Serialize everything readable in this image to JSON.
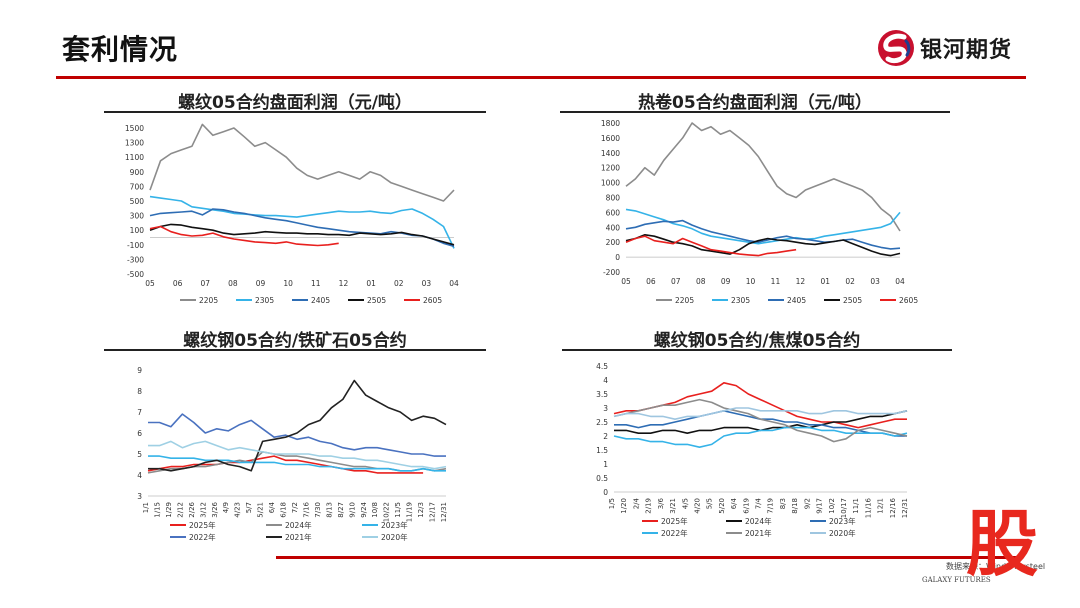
{
  "header": {
    "title": "套利情况",
    "logo_text": "银河期货"
  },
  "footer": {
    "source": "数据来源：Wind、Mysteel",
    "brand": "GALAXY FUTURES",
    "overlay_char": "股"
  },
  "colors": {
    "accent": "#c00000",
    "overlay": "#e8281e"
  },
  "chart_data": [
    {
      "type": "line",
      "title": "螺纹05合约盘面利润（元/吨）",
      "xlabel": "",
      "ylabel": "",
      "x_ticks": [
        "05",
        "06",
        "07",
        "08",
        "09",
        "10",
        "11",
        "12",
        "01",
        "02",
        "03",
        "04"
      ],
      "y_ticks": [
        "1500",
        "1300",
        "1100",
        "900",
        "700",
        "500",
        "300",
        "100",
        "-100",
        "-300",
        "-500"
      ],
      "ylim": [
        -500,
        1500
      ],
      "legend": "bottom",
      "series": [
        {
          "name": "2205",
          "color": "#8c8c8c",
          "values": [
            650,
            1050,
            1150,
            1200,
            1250,
            1550,
            1400,
            1450,
            1500,
            1380,
            1250,
            1300,
            1200,
            1100,
            950,
            850,
            800,
            850,
            900,
            850,
            800,
            900,
            850,
            750,
            700,
            650,
            600,
            550,
            500,
            650
          ]
        },
        {
          "name": "2305",
          "color": "#35b3e8",
          "values": [
            560,
            540,
            520,
            500,
            420,
            400,
            380,
            360,
            330,
            320,
            310,
            300,
            300,
            290,
            280,
            300,
            320,
            340,
            360,
            350,
            350,
            360,
            340,
            330,
            370,
            390,
            330,
            250,
            150,
            -150
          ]
        },
        {
          "name": "2405",
          "color": "#2e6db4",
          "values": [
            300,
            330,
            340,
            350,
            360,
            310,
            390,
            380,
            350,
            330,
            300,
            270,
            250,
            230,
            200,
            170,
            140,
            120,
            100,
            80,
            70,
            60,
            50,
            80,
            60,
            30,
            20,
            -20,
            -80,
            -120
          ]
        },
        {
          "name": "2505",
          "color": "#111111",
          "values": [
            100,
            150,
            180,
            170,
            140,
            120,
            100,
            60,
            40,
            50,
            60,
            80,
            70,
            60,
            60,
            50,
            50,
            40,
            40,
            30,
            60,
            50,
            40,
            50,
            70,
            40,
            20,
            -20,
            -60,
            -100
          ]
        },
        {
          "name": "2605",
          "color": "#e8201e",
          "values": [
            120,
            150,
            80,
            40,
            20,
            30,
            60,
            10,
            -20,
            -40,
            -60,
            -70,
            -80,
            -60,
            -90,
            -100,
            -110,
            -100,
            -80
          ]
        }
      ]
    },
    {
      "type": "line",
      "title": "热卷05合约盘面利润（元/吨）",
      "xlabel": "",
      "ylabel": "",
      "x_ticks": [
        "05",
        "06",
        "07",
        "08",
        "09",
        "10",
        "11",
        "12",
        "01",
        "02",
        "03",
        "04"
      ],
      "y_ticks": [
        "1800",
        "1600",
        "1400",
        "1200",
        "1000",
        "800",
        "600",
        "400",
        "200",
        "0",
        "-200"
      ],
      "ylim": [
        -200,
        1800
      ],
      "legend": "bottom",
      "series": [
        {
          "name": "2205",
          "color": "#8c8c8c",
          "values": [
            950,
            1050,
            1200,
            1100,
            1300,
            1450,
            1600,
            1800,
            1700,
            1750,
            1650,
            1700,
            1600,
            1500,
            1350,
            1150,
            950,
            850,
            800,
            900,
            950,
            1000,
            1050,
            1000,
            950,
            900,
            800,
            650,
            550,
            350
          ]
        },
        {
          "name": "2305",
          "color": "#35b3e8",
          "values": [
            640,
            620,
            580,
            540,
            500,
            450,
            420,
            380,
            320,
            280,
            260,
            240,
            220,
            200,
            180,
            200,
            220,
            240,
            260,
            240,
            250,
            280,
            300,
            320,
            340,
            360,
            380,
            400,
            450,
            600
          ]
        },
        {
          "name": "2405",
          "color": "#2e6db4",
          "values": [
            380,
            400,
            440,
            460,
            480,
            470,
            490,
            430,
            380,
            340,
            310,
            280,
            250,
            220,
            200,
            230,
            260,
            280,
            250,
            240,
            220,
            200,
            210,
            230,
            240,
            200,
            160,
            130,
            110,
            120
          ]
        },
        {
          "name": "2505",
          "color": "#111111",
          "values": [
            220,
            250,
            300,
            280,
            240,
            200,
            180,
            150,
            100,
            80,
            60,
            40,
            100,
            180,
            220,
            250,
            230,
            220,
            200,
            180,
            170,
            190,
            210,
            230,
            180,
            130,
            80,
            40,
            20,
            50
          ]
        },
        {
          "name": "2605",
          "color": "#e8201e",
          "values": [
            200,
            250,
            280,
            220,
            200,
            180,
            250,
            200,
            150,
            100,
            80,
            60,
            40,
            30,
            20,
            50,
            60,
            80,
            100
          ]
        }
      ]
    },
    {
      "type": "line",
      "title": "螺纹钢05合约/铁矿石05合约",
      "xlabel": "",
      "ylabel": "",
      "x_ticks": [
        "1/1",
        "1/15",
        "1/29",
        "2/12",
        "2/26",
        "3/12",
        "3/26",
        "4/9",
        "4/23",
        "5/7",
        "5/21",
        "6/4",
        "6/18",
        "7/2",
        "7/16",
        "7/30",
        "8/13",
        "8/27",
        "9/10",
        "9/24",
        "10/8",
        "10/22",
        "11/5",
        "11/19",
        "12/3",
        "12/17",
        "12/31"
      ],
      "y_ticks": [
        "9",
        "8",
        "7",
        "6",
        "5",
        "4",
        "3"
      ],
      "ylim": [
        3,
        9
      ],
      "legend": "bottom",
      "series": [
        {
          "name": "2025年",
          "color": "#e8201e",
          "values": [
            4.2,
            4.3,
            4.4,
            4.4,
            4.5,
            4.5,
            4.5,
            4.6,
            4.6,
            4.7,
            4.8,
            4.9,
            4.7,
            4.7,
            4.6,
            4.5,
            4.4,
            4.3,
            4.2,
            4.2,
            4.1,
            4.1,
            4.1,
            4.1,
            4.1
          ]
        },
        {
          "name": "2024年",
          "color": "#8c8c8c",
          "values": [
            4.1,
            4.2,
            4.3,
            4.3,
            4.4,
            4.4,
            4.5,
            4.6,
            4.7,
            4.6,
            5.1,
            5.0,
            4.9,
            4.9,
            4.8,
            4.7,
            4.6,
            4.5,
            4.4,
            4.4,
            4.3,
            4.3,
            4.2,
            4.2,
            4.3,
            4.2,
            4.3
          ]
        },
        {
          "name": "2023年",
          "color": "#35b3e8",
          "values": [
            4.9,
            4.9,
            4.8,
            4.8,
            4.8,
            4.7,
            4.7,
            4.7,
            4.6,
            4.6,
            4.6,
            4.6,
            4.5,
            4.5,
            4.5,
            4.4,
            4.4,
            4.3,
            4.3,
            4.3,
            4.3,
            4.3,
            4.2,
            4.2,
            4.3,
            4.2,
            4.2
          ]
        },
        {
          "name": "2022年",
          "color": "#4a72c0",
          "values": [
            6.5,
            6.5,
            6.3,
            6.9,
            6.5,
            6.0,
            6.2,
            6.1,
            6.4,
            6.6,
            6.2,
            5.8,
            5.9,
            5.7,
            5.8,
            5.6,
            5.5,
            5.3,
            5.2,
            5.3,
            5.3,
            5.2,
            5.1,
            5.0,
            5.0,
            4.9,
            4.9
          ]
        },
        {
          "name": "2021年",
          "color": "#222222",
          "values": [
            4.3,
            4.3,
            4.2,
            4.3,
            4.4,
            4.6,
            4.7,
            4.5,
            4.4,
            4.2,
            5.6,
            5.7,
            5.8,
            6.0,
            6.4,
            6.6,
            7.2,
            7.6,
            8.5,
            7.8,
            7.5,
            7.2,
            7.0,
            6.6,
            6.8,
            6.7,
            6.4
          ]
        },
        {
          "name": "2020年",
          "color": "#9fd0e4",
          "values": [
            5.4,
            5.4,
            5.6,
            5.3,
            5.5,
            5.6,
            5.4,
            5.2,
            5.3,
            5.2,
            5.1,
            5.0,
            5.0,
            5.0,
            5.0,
            4.9,
            4.9,
            4.8,
            4.8,
            4.7,
            4.7,
            4.6,
            4.5,
            4.4,
            4.4,
            4.3,
            4.4
          ]
        }
      ]
    },
    {
      "type": "line",
      "title": "螺纹钢05合约/焦煤05合约",
      "xlabel": "",
      "ylabel": "",
      "x_ticks": [
        "1/5",
        "1/20",
        "2/4",
        "2/19",
        "3/6",
        "3/21",
        "4/5",
        "4/20",
        "5/5",
        "5/20",
        "6/4",
        "6/19",
        "7/4",
        "7/19",
        "8/3",
        "8/18",
        "9/2",
        "9/17",
        "10/2",
        "10/17",
        "11/1",
        "11/16",
        "12/1",
        "12/16",
        "12/31"
      ],
      "y_ticks": [
        "4.5",
        "4",
        "3.5",
        "3",
        "2.5",
        "2",
        "1.5",
        "1",
        "0.5",
        "0"
      ],
      "ylim": [
        0,
        4.5
      ],
      "legend": "bottom",
      "series": [
        {
          "name": "2025年",
          "color": "#e8201e",
          "values": [
            2.8,
            2.9,
            2.9,
            3.0,
            3.1,
            3.2,
            3.4,
            3.5,
            3.6,
            3.9,
            3.8,
            3.5,
            3.3,
            3.1,
            2.9,
            2.7,
            2.6,
            2.5,
            2.5,
            2.4,
            2.3,
            2.4,
            2.5,
            2.6,
            2.6
          ]
        },
        {
          "name": "2024年",
          "color": "#111111",
          "values": [
            2.2,
            2.2,
            2.1,
            2.1,
            2.2,
            2.2,
            2.1,
            2.2,
            2.2,
            2.3,
            2.3,
            2.3,
            2.2,
            2.3,
            2.3,
            2.4,
            2.3,
            2.4,
            2.5,
            2.5,
            2.6,
            2.7,
            2.7,
            2.8,
            2.9
          ]
        },
        {
          "name": "2023年",
          "color": "#2e6db4",
          "values": [
            2.4,
            2.4,
            2.3,
            2.4,
            2.4,
            2.5,
            2.6,
            2.7,
            2.8,
            2.9,
            2.8,
            2.7,
            2.6,
            2.6,
            2.5,
            2.5,
            2.4,
            2.4,
            2.3,
            2.3,
            2.2,
            2.1,
            2.1,
            2.0,
            2.0
          ]
        },
        {
          "name": "2022年",
          "color": "#35b3e8",
          "values": [
            2.0,
            1.9,
            1.9,
            1.8,
            1.8,
            1.7,
            1.7,
            1.6,
            1.7,
            2.0,
            2.1,
            2.1,
            2.2,
            2.2,
            2.3,
            2.3,
            2.3,
            2.2,
            2.2,
            2.1,
            2.1,
            2.1,
            2.1,
            2.0,
            2.1
          ]
        },
        {
          "name": "2021年",
          "color": "#8c8c8c",
          "values": [
            2.7,
            2.8,
            2.9,
            3.0,
            3.1,
            3.1,
            3.2,
            3.3,
            3.2,
            3.0,
            2.9,
            2.8,
            2.6,
            2.5,
            2.4,
            2.2,
            2.1,
            2.0,
            1.8,
            1.9,
            2.2,
            2.3,
            2.2,
            2.1,
            2.0
          ]
        },
        {
          "name": "2020年",
          "color": "#9fc6e0",
          "values": [
            2.7,
            2.8,
            2.8,
            2.7,
            2.7,
            2.6,
            2.7,
            2.7,
            2.8,
            2.9,
            3.0,
            3.0,
            2.9,
            2.9,
            2.9,
            2.9,
            2.8,
            2.8,
            2.9,
            2.9,
            2.8,
            2.8,
            2.8,
            2.8,
            2.9
          ]
        }
      ]
    }
  ]
}
